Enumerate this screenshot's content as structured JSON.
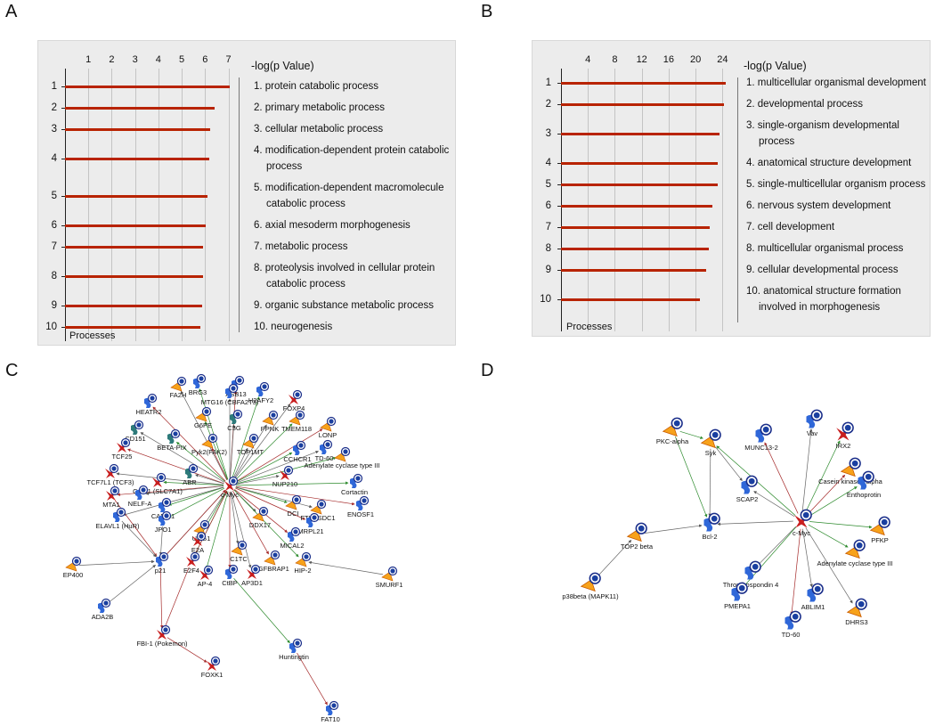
{
  "chart_data": [
    {
      "type": "bar",
      "panel": "A",
      "x_label": "-log(p Value)",
      "y_label": "Processes",
      "categories": [
        "1",
        "2",
        "3",
        "4",
        "5",
        "6",
        "7",
        "8",
        "9",
        "10"
      ],
      "labels": [
        "1. protein catabolic process",
        "2. primary metabolic process",
        "3. cellular metabolic process",
        "4. modification-dependent protein catabolic process",
        "5. modification-dependent macromolecule catabolic process",
        "6. axial mesoderm morphogenesis",
        "7. metabolic process",
        "8. proteolysis involved in cellular protein catabolic process",
        "9. organic substance metabolic process",
        "10. neurogenesis"
      ],
      "values": [
        7.04,
        6.4,
        6.22,
        6.19,
        6.11,
        6.04,
        5.93,
        5.93,
        5.89,
        5.81
      ],
      "color": "#b82300",
      "xlim": [
        0,
        7.4
      ],
      "xticks": [
        1,
        2,
        3,
        4,
        5,
        6,
        7
      ],
      "grid": true
    },
    {
      "type": "bar",
      "panel": "B",
      "x_label": "-log(p Value)",
      "y_label": "Processes",
      "categories": [
        "1",
        "2",
        "3",
        "4",
        "5",
        "6",
        "7",
        "8",
        "9",
        "10"
      ],
      "labels": [
        "1. multicellular organismal development",
        "2. developmental process",
        "3. single-organism developmental process",
        "4. anatomical structure development",
        "5. single-multicellular organism process",
        "6. nervous system development",
        "7. cell development",
        "8. multicellular organismal process",
        "9. cellular developmental process",
        "10. anatomical structure formation involved in morphogenesis"
      ],
      "values": [
        24.5,
        24.2,
        23.6,
        23.3,
        23.3,
        22.5,
        22.1,
        22,
        21.6,
        20.7
      ],
      "color": "#b82300",
      "xlim": [
        0,
        25.8
      ],
      "xticks": [
        4,
        8,
        12,
        16,
        20,
        24
      ],
      "grid": true
    }
  ],
  "networks": [
    {
      "panel": "C",
      "nodes": [
        "FA2H",
        "BRG3",
        "ASB13",
        "MTG16 (CBFA2T3)",
        "H2AFY2",
        "FOXP4",
        "HEATR2",
        "G6PE",
        "C3G",
        "PPNK",
        "TMEM118",
        "LONP",
        "CD151",
        "BETA-PIX",
        "Pyk2(FAK2)",
        "TOP1MT",
        "CCHCR1",
        "TD-60",
        "TCF25",
        "Adenylate cyclase type III",
        "ABR",
        "TCF7L1 (TCF3)",
        "CAT-1 (SLC7A1)",
        "c-Myc",
        "NUP210",
        "Cortactin",
        "MTA1",
        "NELF-A",
        "DCI",
        "FTHFSDC1",
        "ENOSF1",
        "CARM1",
        "ELAVL1 (HuR)",
        "DDX17",
        "JPO1",
        "MRPL21",
        "UNG1",
        "E2A",
        "MICAL2",
        "p21",
        "E2F4",
        "C1TC",
        "TGFBRAP1",
        "HIP-2",
        "EP400",
        "SMURF1",
        "AP-4",
        "CtBP",
        "AP3D1",
        "ADA2B",
        "FBI-1 (Pokemon)",
        "Huntingtin",
        "FOXK1",
        "FAT10"
      ]
    },
    {
      "panel": "D",
      "nodes": [
        "PKC-alpha",
        "Syk",
        "MUNC13-2",
        "Vav",
        "IRX2",
        "SCAP2",
        "Casein kinase I alpha",
        "Enthoprotin",
        "Bcl-2",
        "c-Myc",
        "PFKP",
        "TOP2 beta",
        "Thrombospondin 4",
        "Adenylate cyclase type III",
        "p38beta (MAPK11)",
        "ABLIM1",
        "PMEPA1",
        "DHRS3",
        "TD-60"
      ]
    }
  ]
}
